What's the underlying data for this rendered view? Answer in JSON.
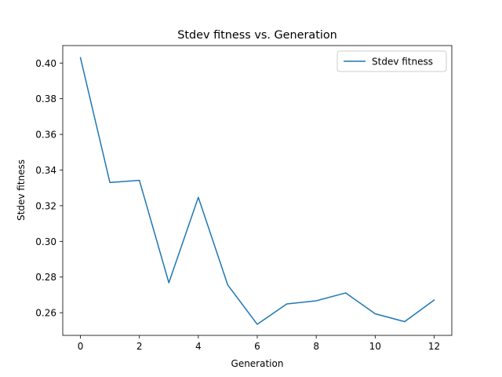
{
  "chart_data": {
    "type": "line",
    "title": "Stdev fitness vs. Generation",
    "xlabel": "Generation",
    "ylabel": "Stdev fitness",
    "xlim": [
      -0.6,
      12.6
    ],
    "ylim": [
      0.2473,
      0.4098
    ],
    "x_ticks": [
      0,
      2,
      4,
      6,
      8,
      10,
      12
    ],
    "x_tick_labels": [
      "0",
      "2",
      "4",
      "6",
      "8",
      "10",
      "12"
    ],
    "y_ticks": [
      0.26,
      0.28,
      0.3,
      0.32,
      0.34,
      0.36,
      0.38,
      0.4
    ],
    "y_tick_labels": [
      "0.26",
      "0.28",
      "0.30",
      "0.32",
      "0.34",
      "0.36",
      "0.38",
      "0.40"
    ],
    "grid": false,
    "legend_position": "upper right",
    "series": [
      {
        "name": "Stdev fitness",
        "color": "#1f77b4",
        "x": [
          0,
          1,
          2,
          3,
          4,
          5,
          6,
          7,
          8,
          9,
          10,
          11,
          12
        ],
        "y": [
          0.403,
          0.333,
          0.3342,
          0.2768,
          0.3247,
          0.2755,
          0.2535,
          0.2649,
          0.2667,
          0.2711,
          0.2594,
          0.255,
          0.2671
        ]
      }
    ]
  }
}
